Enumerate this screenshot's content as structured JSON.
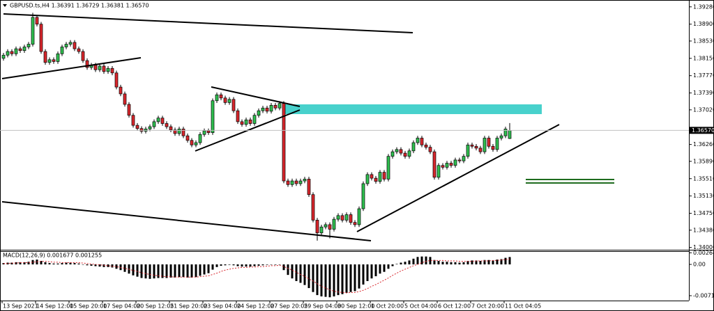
{
  "chart_data": [
    {
      "type": "candlestick",
      "title": "GBPUSD.ts,H4  1.36391 1.36729 1.36381 1.36570",
      "up_color": "#2fbf4f",
      "down_color": "#d9262c",
      "categories": [
        "13 Sep 2021",
        null,
        null,
        null,
        null,
        null,
        null,
        null,
        "14 Sep 12:00",
        null,
        null,
        null,
        null,
        null,
        null,
        null,
        "15 Sep 20:00",
        null,
        null,
        null,
        null,
        null,
        null,
        null,
        "17 Sep 04:00",
        null,
        null,
        null,
        null,
        null,
        null,
        null,
        "20 Sep 12:05",
        null,
        null,
        null,
        null,
        null,
        null,
        null,
        "21 Sep 20:00",
        null,
        null,
        null,
        null,
        null,
        null,
        null,
        "23 Sep 04:00",
        null,
        null,
        null,
        null,
        null,
        null,
        null,
        "24 Sep 12:00",
        null,
        null,
        null,
        null,
        null,
        null,
        null,
        "27 Sep 20:05",
        null,
        null,
        null,
        null,
        null,
        null,
        null,
        "29 Sep 04:00",
        null,
        null,
        null,
        null,
        null,
        null,
        null,
        "30 Sep 12:00",
        null,
        null,
        null,
        null,
        null,
        null,
        null,
        "1 Oct 20:00",
        null,
        null,
        null,
        null,
        null,
        null,
        null,
        "5 Oct 04:00",
        null,
        null,
        null,
        null,
        null,
        null,
        null,
        "6 Oct 12:00",
        null,
        null,
        null,
        null,
        null,
        null,
        null,
        "7 Oct 20:00",
        null,
        null,
        null,
        null,
        null,
        null,
        null,
        "11 Oct 04:05",
        null
      ],
      "open": [
        1.3815,
        1.3822,
        1.383,
        1.3825,
        1.3836,
        1.3832,
        1.384,
        1.3846,
        1.3905,
        1.389,
        1.383,
        1.3806,
        1.3812,
        1.3808,
        1.3825,
        1.384,
        1.3846,
        1.385,
        1.3836,
        1.383,
        1.381,
        1.3795,
        1.38,
        1.379,
        1.3798,
        1.3786,
        1.3793,
        1.3783,
        1.3752,
        1.3737,
        1.3714,
        1.369,
        1.3668,
        1.3661,
        1.3655,
        1.366,
        1.3665,
        1.3676,
        1.3684,
        1.3672,
        1.3665,
        1.3658,
        1.365,
        1.366,
        1.3645,
        1.3635,
        1.3625,
        1.363,
        1.3648,
        1.3656,
        1.3652,
        1.3722,
        1.3735,
        1.3728,
        1.3718,
        1.3725,
        1.37,
        1.3676,
        1.367,
        1.368,
        1.3672,
        1.369,
        1.37,
        1.3706,
        1.3699,
        1.3712,
        1.3706,
        1.3716,
        1.3546,
        1.3538,
        1.3546,
        1.354,
        1.3546,
        1.355,
        1.3516,
        1.346,
        1.3432,
        1.3445,
        1.345,
        1.344,
        1.3462,
        1.347,
        1.346,
        1.3472,
        1.3455,
        1.345,
        1.3485,
        1.354,
        1.356,
        1.3552,
        1.3545,
        1.3565,
        1.355,
        1.36,
        1.361,
        1.3615,
        1.3607,
        1.36,
        1.3612,
        1.363,
        1.364,
        1.3625,
        1.362,
        1.361,
        1.3554,
        1.358,
        1.3576,
        1.3585,
        1.358,
        1.3592,
        1.359,
        1.36,
        1.3625,
        1.3622,
        1.3618,
        1.361,
        1.364,
        1.3622,
        1.3615,
        1.364,
        1.3645,
        1.36391
      ],
      "high": [
        1.3827,
        1.3835,
        1.3835,
        1.3841,
        1.3841,
        1.3845,
        1.3851,
        1.3915,
        1.391,
        1.3895,
        1.3835,
        1.3817,
        1.3817,
        1.383,
        1.3845,
        1.3851,
        1.3855,
        1.3855,
        1.3841,
        1.3835,
        1.3815,
        1.3805,
        1.3805,
        1.3803,
        1.3803,
        1.3798,
        1.3798,
        1.3788,
        1.3757,
        1.3742,
        1.3719,
        1.3695,
        1.3673,
        1.3666,
        1.3665,
        1.367,
        1.3681,
        1.3689,
        1.3689,
        1.3677,
        1.367,
        1.3663,
        1.3665,
        1.3665,
        1.365,
        1.364,
        1.3635,
        1.3653,
        1.3661,
        1.3661,
        1.3727,
        1.374,
        1.374,
        1.3733,
        1.373,
        1.373,
        1.3705,
        1.3681,
        1.3685,
        1.3685,
        1.3695,
        1.3705,
        1.3711,
        1.3711,
        1.3717,
        1.3717,
        1.3721,
        1.3721,
        1.3551,
        1.3551,
        1.3551,
        1.3551,
        1.3555,
        1.3555,
        1.3521,
        1.3465,
        1.345,
        1.3455,
        1.3455,
        1.3467,
        1.3475,
        1.3475,
        1.3477,
        1.3477,
        1.346,
        1.349,
        1.3545,
        1.3565,
        1.3565,
        1.3557,
        1.357,
        1.357,
        1.3605,
        1.3615,
        1.362,
        1.362,
        1.3612,
        1.3617,
        1.3635,
        1.3645,
        1.3645,
        1.363,
        1.3625,
        1.3615,
        1.3585,
        1.3585,
        1.359,
        1.359,
        1.3597,
        1.3597,
        1.3605,
        1.363,
        1.363,
        1.3627,
        1.3623,
        1.3645,
        1.3645,
        1.3627,
        1.3645,
        1.365,
        1.3665,
        1.36729
      ],
      "low": [
        1.381,
        1.3817,
        1.382,
        1.382,
        1.3827,
        1.3827,
        1.3835,
        1.3841,
        1.3885,
        1.3825,
        1.3801,
        1.3801,
        1.3803,
        1.3803,
        1.382,
        1.3835,
        1.3841,
        1.3831,
        1.3825,
        1.3805,
        1.379,
        1.379,
        1.3785,
        1.3785,
        1.3781,
        1.3781,
        1.3778,
        1.3747,
        1.3732,
        1.3709,
        1.3685,
        1.3663,
        1.3656,
        1.365,
        1.365,
        1.3655,
        1.366,
        1.3671,
        1.3667,
        1.366,
        1.3653,
        1.3645,
        1.3645,
        1.364,
        1.363,
        1.362,
        1.362,
        1.3625,
        1.3643,
        1.3647,
        1.3647,
        1.3717,
        1.3723,
        1.3713,
        1.3713,
        1.3695,
        1.3671,
        1.3665,
        1.3665,
        1.3667,
        1.3667,
        1.3685,
        1.3695,
        1.3694,
        1.3694,
        1.3701,
        1.3701,
        1.3541,
        1.3533,
        1.3533,
        1.3535,
        1.3535,
        1.3541,
        1.3511,
        1.3455,
        1.3415,
        1.3427,
        1.344,
        1.342,
        1.3435,
        1.3457,
        1.3455,
        1.3455,
        1.345,
        1.3445,
        1.3445,
        1.348,
        1.3535,
        1.3547,
        1.354,
        1.354,
        1.3545,
        1.3545,
        1.3595,
        1.3605,
        1.3602,
        1.3595,
        1.3595,
        1.3607,
        1.3625,
        1.362,
        1.3615,
        1.3605,
        1.3549,
        1.3549,
        1.3571,
        1.3571,
        1.3575,
        1.3575,
        1.3585,
        1.3585,
        1.3595,
        1.3617,
        1.3613,
        1.3605,
        1.3605,
        1.3617,
        1.361,
        1.361,
        1.3635,
        1.364,
        1.36381
      ],
      "close": [
        1.3822,
        1.383,
        1.3825,
        1.3836,
        1.3832,
        1.384,
        1.3846,
        1.3905,
        1.389,
        1.383,
        1.3806,
        1.3812,
        1.3808,
        1.3825,
        1.384,
        1.3846,
        1.385,
        1.3836,
        1.383,
        1.381,
        1.3795,
        1.38,
        1.379,
        1.3798,
        1.3786,
        1.3793,
        1.3783,
        1.3752,
        1.3737,
        1.3714,
        1.369,
        1.3668,
        1.3661,
        1.3655,
        1.366,
        1.3665,
        1.3676,
        1.3684,
        1.3672,
        1.3665,
        1.3658,
        1.365,
        1.366,
        1.3645,
        1.3635,
        1.3625,
        1.363,
        1.3648,
        1.3656,
        1.3652,
        1.3722,
        1.3735,
        1.3728,
        1.3718,
        1.3725,
        1.37,
        1.3676,
        1.367,
        1.368,
        1.3672,
        1.369,
        1.37,
        1.3706,
        1.3699,
        1.3712,
        1.3706,
        1.3716,
        1.3546,
        1.3538,
        1.3546,
        1.354,
        1.3546,
        1.355,
        1.3516,
        1.346,
        1.3432,
        1.3445,
        1.345,
        1.344,
        1.3462,
        1.347,
        1.346,
        1.3472,
        1.3455,
        1.345,
        1.3485,
        1.354,
        1.356,
        1.3552,
        1.3545,
        1.3565,
        1.355,
        1.36,
        1.361,
        1.3615,
        1.3607,
        1.36,
        1.3612,
        1.363,
        1.364,
        1.3625,
        1.362,
        1.361,
        1.3554,
        1.358,
        1.3576,
        1.3585,
        1.358,
        1.3592,
        1.359,
        1.36,
        1.3625,
        1.3622,
        1.3618,
        1.361,
        1.364,
        1.3622,
        1.3615,
        1.364,
        1.3645,
        1.366,
        1.3657
      ],
      "ylim": [
        1.3398,
        1.3943
      ],
      "yticks": [
        {
          "value": 1.3928,
          "label": "1.39280"
        },
        {
          "value": 1.389,
          "label": "1.38900"
        },
        {
          "value": 1.3853,
          "label": "1.38530"
        },
        {
          "value": 1.3815,
          "label": "1.38150"
        },
        {
          "value": 1.3777,
          "label": "1.37770"
        },
        {
          "value": 1.3739,
          "label": "1.37390"
        },
        {
          "value": 1.3702,
          "label": "1.37020"
        },
        {
          "value": 1.3626,
          "label": "1.36260"
        },
        {
          "value": 1.3589,
          "label": "1.35890"
        },
        {
          "value": 1.3551,
          "label": "1.35510"
        },
        {
          "value": 1.3513,
          "label": "1.35130"
        },
        {
          "value": 1.3475,
          "label": "1.34750"
        },
        {
          "value": 1.3438,
          "label": "1.34380"
        },
        {
          "value": 1.34,
          "label": "1.34000"
        }
      ],
      "last_price": {
        "value": 1.3657,
        "label": "1.36570"
      }
    },
    {
      "type": "macd",
      "title": "MACD(12,26,9) 0.001677 0.001255",
      "histogram": {
        "color": "#000000",
        "values": [
          0.0003,
          0.0004,
          0.0004,
          0.0005,
          0.0005,
          0.0005,
          0.0006,
          0.001,
          0.0011,
          0.0008,
          0.0005,
          0.0003,
          0.0002,
          0.0002,
          0.0003,
          0.0004,
          0.0004,
          0.0003,
          0.0002,
          0.0,
          -0.0002,
          -0.0003,
          -0.0004,
          -0.0005,
          -0.0006,
          -0.0006,
          -0.0007,
          -0.001,
          -0.0013,
          -0.0017,
          -0.0021,
          -0.0025,
          -0.0028,
          -0.0031,
          -0.0032,
          -0.0033,
          -0.0032,
          -0.0031,
          -0.0031,
          -0.0031,
          -0.003,
          -0.003,
          -0.0029,
          -0.0029,
          -0.003,
          -0.003,
          -0.0029,
          -0.0026,
          -0.0023,
          -0.002,
          -0.0012,
          -0.0006,
          -0.0003,
          -0.0002,
          -0.0001,
          -0.0002,
          -0.0004,
          -0.0005,
          -0.0005,
          -0.0005,
          -0.0004,
          -0.0003,
          -0.0002,
          -0.0001,
          0.0,
          -0.0001,
          0.0,
          -0.0013,
          -0.0024,
          -0.0032,
          -0.0038,
          -0.0042,
          -0.0047,
          -0.0054,
          -0.0063,
          -0.007,
          -0.0073,
          -0.0074,
          -0.0075,
          -0.0073,
          -0.007,
          -0.0068,
          -0.0065,
          -0.0063,
          -0.0061,
          -0.0055,
          -0.0046,
          -0.0038,
          -0.0032,
          -0.0027,
          -0.0021,
          -0.0017,
          -0.001,
          -0.0004,
          0.0001,
          0.0004,
          0.0006,
          0.0009,
          0.0013,
          0.0017,
          0.0018,
          0.0018,
          0.0017,
          0.001,
          0.0008,
          0.0006,
          0.0006,
          0.0005,
          0.0005,
          0.0004,
          0.0005,
          0.0008,
          0.0009,
          0.0009,
          0.0008,
          0.001,
          0.001,
          0.0009,
          0.0011,
          0.0012,
          0.0015,
          0.001677
        ]
      },
      "signal": {
        "color": "#d9262c",
        "values": [
          0.0002,
          0.0002,
          0.0003,
          0.0003,
          0.0004,
          0.0004,
          0.0004,
          0.0005,
          0.0006,
          0.0007,
          0.0007,
          0.0006,
          0.0005,
          0.0005,
          0.0004,
          0.0004,
          0.0004,
          0.0004,
          0.0004,
          0.0003,
          0.0002,
          0.0001,
          0.0,
          -0.0001,
          -0.0002,
          -0.0003,
          -0.0004,
          -0.0005,
          -0.0007,
          -0.0009,
          -0.0011,
          -0.0014,
          -0.0016,
          -0.0019,
          -0.0021,
          -0.0023,
          -0.0025,
          -0.0026,
          -0.0027,
          -0.0028,
          -0.0028,
          -0.0029,
          -0.0029,
          -0.0029,
          -0.0029,
          -0.0029,
          -0.0029,
          -0.0028,
          -0.0027,
          -0.0026,
          -0.0023,
          -0.002,
          -0.0016,
          -0.0013,
          -0.0011,
          -0.0009,
          -0.0008,
          -0.0007,
          -0.0007,
          -0.0006,
          -0.0006,
          -0.0005,
          -0.0005,
          -0.0004,
          -0.0003,
          -0.0003,
          -0.0002,
          -0.0005,
          -0.0009,
          -0.0013,
          -0.0018,
          -0.0023,
          -0.0027,
          -0.0033,
          -0.0038,
          -0.0044,
          -0.005,
          -0.0054,
          -0.0058,
          -0.0061,
          -0.0063,
          -0.0064,
          -0.0065,
          -0.0064,
          -0.0064,
          -0.0062,
          -0.0059,
          -0.0055,
          -0.005,
          -0.0046,
          -0.0041,
          -0.0036,
          -0.0031,
          -0.0025,
          -0.002,
          -0.0015,
          -0.0011,
          -0.0007,
          -0.0003,
          0.0,
          0.0004,
          0.0007,
          0.0009,
          0.0009,
          0.0009,
          0.0009,
          0.0008,
          0.0008,
          0.0008,
          0.0007,
          0.0007,
          0.0007,
          0.0007,
          0.0008,
          0.0008,
          0.0008,
          0.0008,
          0.0009,
          0.0009,
          0.001,
          0.0011,
          0.001255
        ]
      },
      "ylim": [
        -0.00825,
        0.00286
      ],
      "yticks": [
        0.002643,
        {
          "value": 0,
          "label": "0.00"
        },
        -0.007139
      ]
    }
  ]
}
